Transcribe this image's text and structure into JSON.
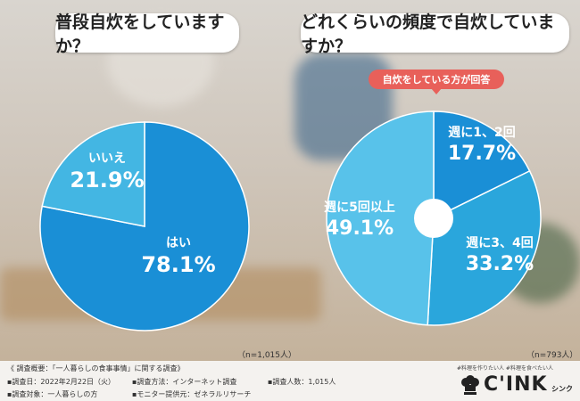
{
  "left_title": "普段自炊をしていますか？",
  "right_title": "どれくらいの頻度で自炊していますか？",
  "right_tag": "自炊をしている方が回答",
  "left_n": "（n=1,015人）",
  "right_n": "（n=793人）",
  "colors": {
    "deep": "#1a8fd6",
    "mid": "#2aa6dc",
    "light": "#5ec4ea",
    "pale": "#45bde9"
  },
  "chart_data": [
    {
      "type": "pie",
      "title": "普段自炊をしていますか？",
      "slices": [
        {
          "name": "はい",
          "value": 78.1,
          "label_pct": "78.1%",
          "color": "#1a8fd6"
        },
        {
          "name": "いいえ",
          "value": 21.9,
          "label_pct": "21.9%",
          "color": "#43b6e3"
        }
      ]
    },
    {
      "type": "pie",
      "title": "どれくらいの頻度で自炊していますか？",
      "slices": [
        {
          "name": "週に1、2回",
          "value": 17.7,
          "label_pct": "17.7%",
          "color": "#1a8fd6"
        },
        {
          "name": "週に3、4回",
          "value": 33.2,
          "label_pct": "33.2%",
          "color": "#2aa6dc"
        },
        {
          "name": "週に5回以上",
          "value": 49.1,
          "label_pct": "49.1%",
          "color": "#58c2ea"
        }
      ]
    }
  ],
  "footer": {
    "line1": "《 調査概要：「一人暮らしの食事事情」に関する調査》",
    "date": "▪調査日：2022年2月22日（火）",
    "method": "▪調査方法：インターネット調査",
    "count": "▪調査人数：1,015人",
    "target": "▪調査対象：一人暮らしの方",
    "provider": "▪モニター提供元：ゼネラルリサーチ"
  },
  "brand": {
    "tagline": "#料理を作りたい人  #料理を食べたい人",
    "name": "C'INK",
    "sub": "シンク"
  }
}
